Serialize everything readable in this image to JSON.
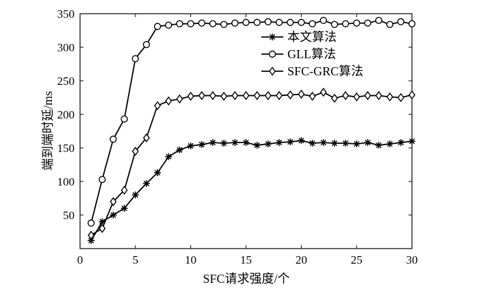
{
  "chart_data": {
    "type": "line",
    "title": "",
    "xlabel": "SFC请求强度/个",
    "ylabel": "端到端时延/ms",
    "xlim": [
      0,
      30
    ],
    "ylim": [
      0,
      350
    ],
    "xticks": [
      0,
      5,
      10,
      15,
      20,
      25,
      30
    ],
    "yticks": [
      50,
      100,
      150,
      200,
      250,
      300,
      350
    ],
    "grid": false,
    "legend_position": "top-right",
    "x": [
      1,
      2,
      3,
      4,
      5,
      6,
      7,
      8,
      9,
      10,
      11,
      12,
      13,
      14,
      15,
      16,
      17,
      18,
      19,
      20,
      21,
      22,
      23,
      24,
      25,
      26,
      27,
      28,
      29,
      30
    ],
    "series": [
      {
        "name": "本文算法",
        "marker": "asterisk",
        "values": [
          12,
          40,
          50,
          60,
          80,
          97,
          113,
          137,
          147,
          153,
          155,
          158,
          157,
          158,
          158,
          154,
          156,
          158,
          159,
          161,
          157,
          158,
          157,
          157,
          156,
          158,
          154,
          156,
          158,
          160
        ]
      },
      {
        "name": "GLL算法",
        "marker": "circle",
        "values": [
          38,
          103,
          163,
          193,
          283,
          304,
          331,
          333,
          335,
          335,
          336,
          335,
          334,
          336,
          337,
          337,
          338,
          337,
          337,
          337,
          335,
          340,
          334,
          335,
          336,
          336,
          340,
          334,
          338,
          335
        ]
      },
      {
        "name": "SFC-GRC算法",
        "marker": "diamond",
        "values": [
          20,
          30,
          70,
          87,
          145,
          165,
          213,
          220,
          223,
          227,
          228,
          228,
          227,
          228,
          228,
          228,
          228,
          228,
          229,
          230,
          227,
          233,
          224,
          228,
          226,
          228,
          228,
          226,
          225,
          229
        ]
      }
    ]
  }
}
